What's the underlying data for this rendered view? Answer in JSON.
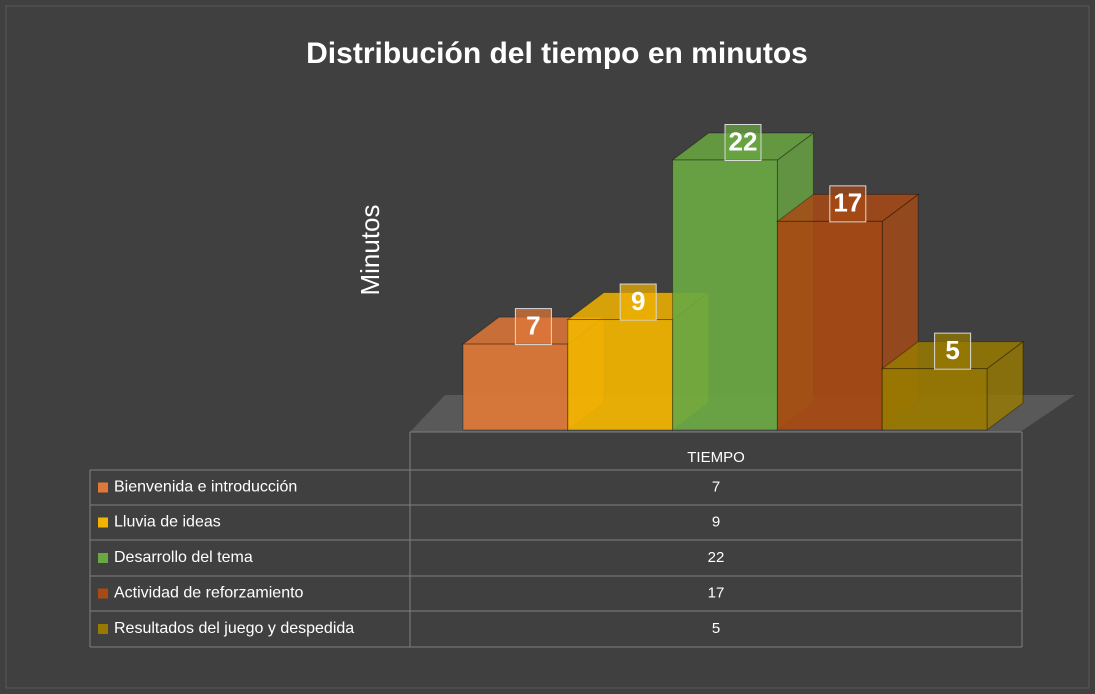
{
  "chart_data": {
    "type": "bar3d",
    "title": "Distribución del tiempo en minutos",
    "y_label": "Minutos",
    "categories": [
      "TIEMPO"
    ],
    "series": [
      {
        "name": "Bienvenida e introducción",
        "color": "#e07838",
        "values": [
          7
        ]
      },
      {
        "name": "Lluvia de ideas",
        "color": "#f2b400",
        "values": [
          9
        ]
      },
      {
        "name": "Desarrollo del tema",
        "color": "#6aa842",
        "values": [
          22
        ]
      },
      {
        "name": "Actividad de reforzamiento",
        "color": "#a84a14",
        "values": [
          17
        ]
      },
      {
        "name": "Resultados del juego y despedida",
        "color": "#997a00",
        "values": [
          5
        ]
      }
    ],
    "ylim": [
      0,
      22
    ]
  }
}
